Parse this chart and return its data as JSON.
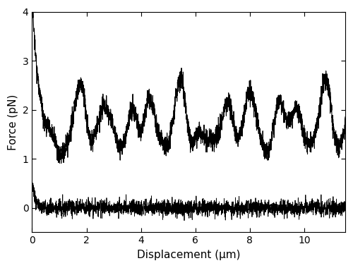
{
  "title": "",
  "xlabel": "Displacement (μm)",
  "ylabel": "Force (pN)",
  "xlim": [
    0,
    11.5
  ],
  "ylim": [
    -0.5,
    4.0
  ],
  "xticks": [
    0,
    2,
    4,
    6,
    8,
    10
  ],
  "yticks": [
    0,
    1,
    2,
    3,
    4
  ],
  "line1_color": "#000000",
  "line2_color": "#000000",
  "linewidth1": 0.8,
  "linewidth2": 0.6,
  "noise_seed": 7,
  "n_points": 3000,
  "background_color": "#ffffff",
  "figsize": [
    5.0,
    3.8
  ],
  "dpi": 100
}
